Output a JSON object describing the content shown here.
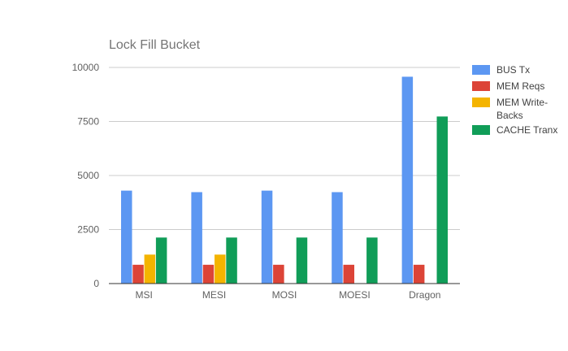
{
  "chart_data": {
    "type": "bar",
    "title": "Lock Fill Bucket",
    "xlabel": "",
    "ylabel": "",
    "categories": [
      "MSI",
      "MESI",
      "MOSI",
      "MOESI",
      "Dragon"
    ],
    "ylim": [
      0,
      10000
    ],
    "yticks": [
      0,
      2500,
      5000,
      7500,
      10000
    ],
    "grid": true,
    "legend_position": "right",
    "series": [
      {
        "name": "BUS Tx",
        "color": "#5c97f2",
        "values": [
          4300,
          4230,
          4300,
          4230,
          9570
        ]
      },
      {
        "name": "MEM Reqs",
        "color": "#dc4437",
        "values": [
          870,
          870,
          870,
          870,
          870
        ]
      },
      {
        "name": "MEM Write-Backs",
        "color": "#f4b400",
        "values": [
          1340,
          1340,
          0,
          0,
          0
        ]
      },
      {
        "name": "CACHE Tranx",
        "color": "#109d58",
        "values": [
          2130,
          2130,
          2130,
          2130,
          7730
        ]
      }
    ]
  }
}
